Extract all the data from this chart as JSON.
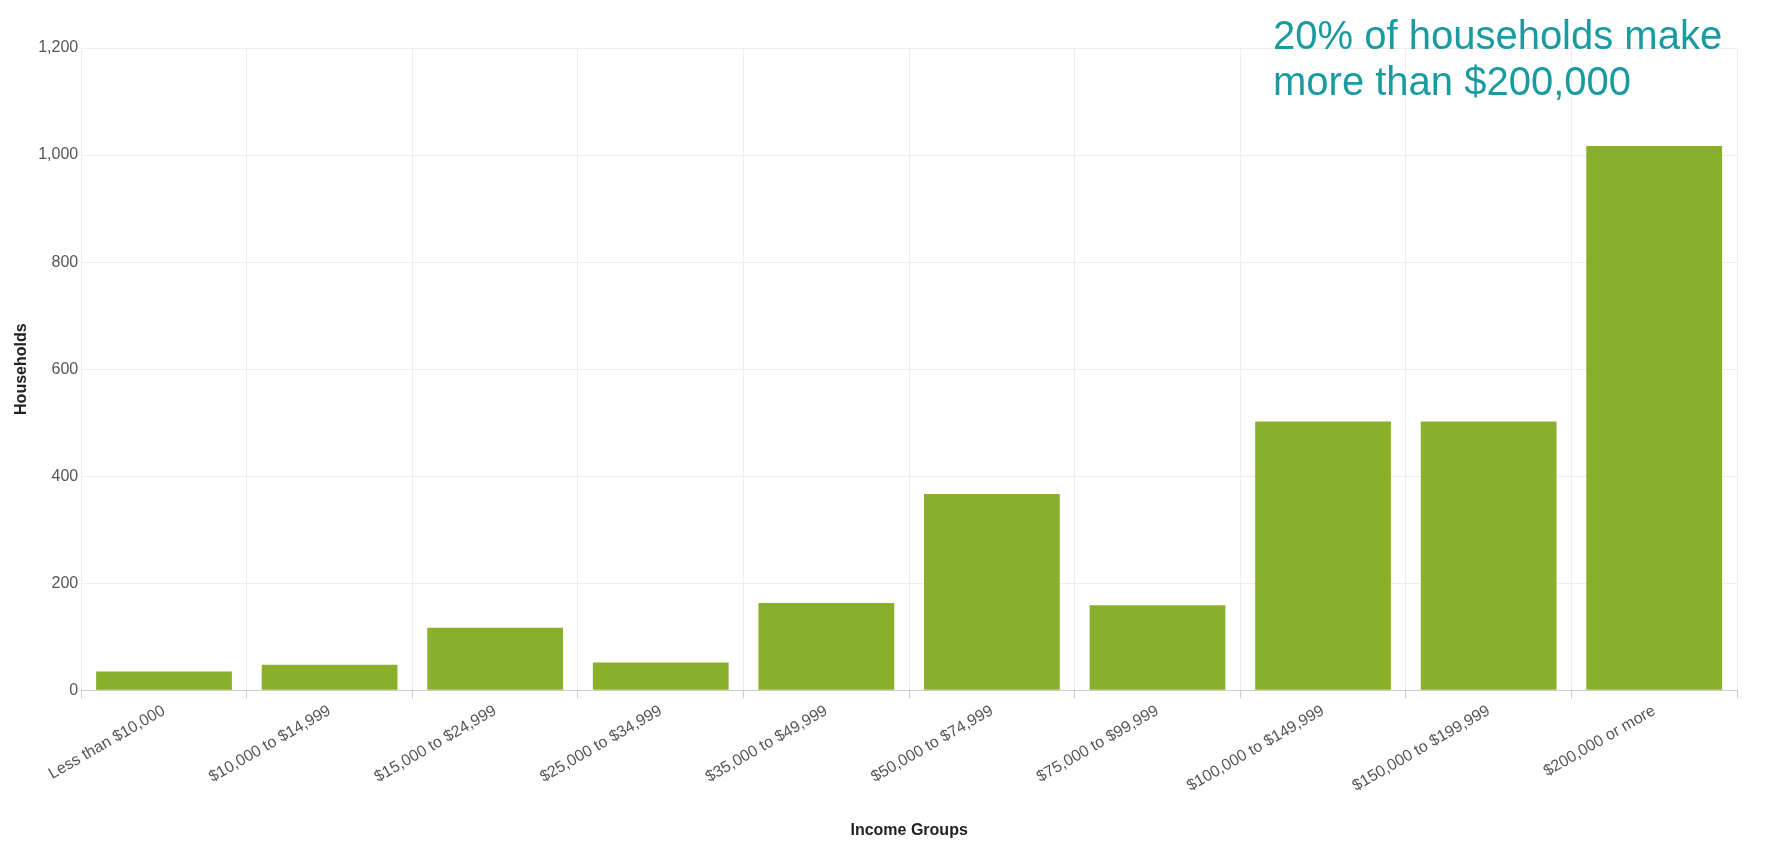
{
  "chart_data": {
    "type": "bar",
    "xlabel": "Income Groups",
    "ylabel": "Households",
    "categories": [
      "Less than $10,000",
      "$10,000 to $14,999",
      "$15,000 to $24,999",
      "$25,000 to $34,999",
      "$35,000 to $49,999",
      "$50,000 to $74,999",
      "$75,000 to $99,999",
      "$100,000 to $149,999",
      "$150,000 to $199,999",
      "$200,000 or more"
    ],
    "values": [
      35,
      48,
      117,
      52,
      163,
      367,
      159,
      502,
      502,
      1017
    ],
    "color": "#8ab02b",
    "ylim": [
      0,
      1200
    ],
    "yticks": [
      0,
      {
        "value": 200,
        "label": "200"
      },
      {
        "value": 400,
        "label": "400"
      },
      {
        "value": 600,
        "label": "600"
      },
      {
        "value": 800,
        "label": "800"
      },
      {
        "value": 1000,
        "label": "1,000"
      },
      {
        "value": 1200,
        "label": "1,200"
      }
    ],
    "grid": true,
    "legend": false,
    "annotations": [
      "20% of households make more than $200,000"
    ]
  }
}
